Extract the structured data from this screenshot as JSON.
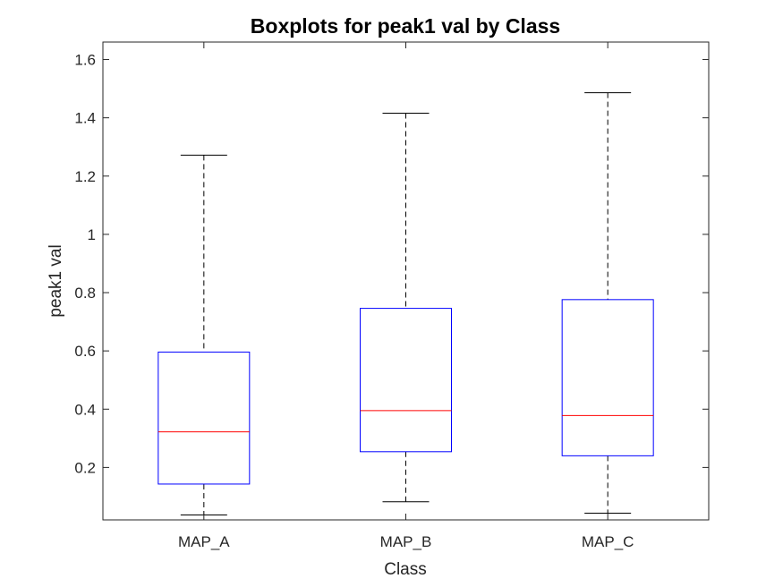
{
  "chart_data": {
    "type": "boxplot",
    "title": "Boxplots for peak1 val by Class",
    "xlabel": "Class",
    "ylabel": "peak1 val",
    "ylim": [
      0.02,
      1.66
    ],
    "yticks": [
      0.2,
      0.4,
      0.6,
      0.8,
      1,
      1.2,
      1.4,
      1.6
    ],
    "ytick_labels": [
      "0.2",
      "0.4",
      "0.6",
      "0.8",
      "1",
      "1.2",
      "1.4",
      "1.6"
    ],
    "categories": [
      "MAP_A",
      "MAP_B",
      "MAP_C"
    ],
    "boxes": [
      {
        "category": "MAP_A",
        "whisker_low": 0.037,
        "q1": 0.143,
        "median": 0.322,
        "q3": 0.596,
        "whisker_high": 1.272
      },
      {
        "category": "MAP_B",
        "whisker_low": 0.082,
        "q1": 0.254,
        "median": 0.395,
        "q3": 0.746,
        "whisker_high": 1.416
      },
      {
        "category": "MAP_C",
        "whisker_low": 0.043,
        "q1": 0.24,
        "median": 0.378,
        "q3": 0.776,
        "whisker_high": 1.486
      }
    ],
    "grid": false,
    "colors": {
      "box": "#0000ff",
      "median": "#ff0000",
      "whisker": "#000000",
      "axis": "#262626"
    }
  }
}
